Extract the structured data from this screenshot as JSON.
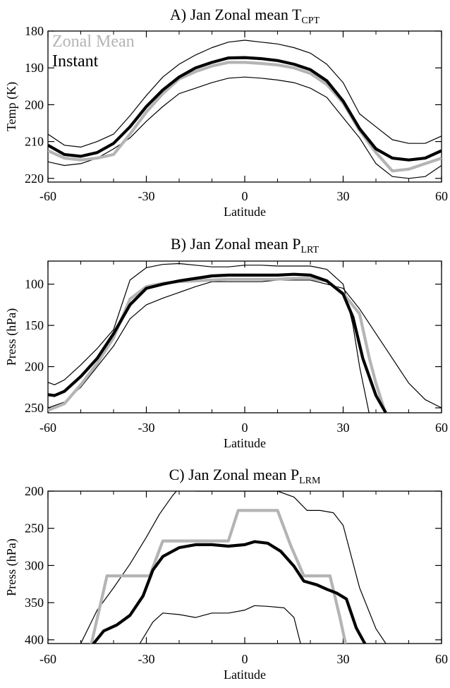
{
  "chart_data": [
    {
      "type": "line",
      "title": "A) Jan Zonal mean T",
      "title_sub": "CPT",
      "xlabel": "Latitude",
      "ylabel": "Temp (K)",
      "xlim": [
        -60,
        60
      ],
      "ylim": [
        180,
        221
      ],
      "y_inverted": true,
      "xticks": [
        "-60",
        "-30",
        "0",
        "30",
        "60"
      ],
      "yticks": [
        "180",
        "190",
        "200",
        "210",
        "220"
      ],
      "legend": [
        "Zonal Mean",
        "Instant"
      ],
      "colors": {
        "zonal_mean": "#b4b4b4",
        "instant": "#000000",
        "spread": "#000000"
      },
      "series": [
        {
          "name": "Zonal Mean",
          "x": [
            -60,
            -55,
            -50,
            -45,
            -40,
            -35,
            -30,
            -25,
            -20,
            -15,
            -10,
            -5,
            0,
            5,
            10,
            15,
            20,
            25,
            30,
            35,
            40,
            45,
            50,
            55,
            60
          ],
          "values": [
            212.5,
            214.5,
            215,
            214.5,
            213.5,
            208,
            202,
            197,
            193,
            191,
            189.5,
            188.5,
            188.5,
            188.8,
            189.2,
            190,
            191.5,
            194.5,
            199.5,
            207,
            213,
            218,
            217.5,
            216,
            214.5
          ]
        },
        {
          "name": "Instant",
          "x": [
            -60,
            -55,
            -50,
            -45,
            -40,
            -35,
            -30,
            -25,
            -20,
            -15,
            -10,
            -5,
            0,
            5,
            10,
            15,
            20,
            25,
            30,
            35,
            40,
            45,
            50,
            55,
            60
          ],
          "values": [
            211,
            213.5,
            214,
            213,
            210.5,
            206,
            200.5,
            196,
            192.5,
            190,
            188.5,
            187.3,
            187.2,
            187.5,
            188,
            189,
            190.5,
            193.5,
            199,
            206.5,
            212,
            214.5,
            215,
            214.5,
            212.5
          ]
        },
        {
          "x": [
            -60,
            -55,
            -50,
            -45,
            -40,
            -35,
            -30,
            -25,
            -20,
            -15,
            -10,
            -5,
            0,
            5,
            10,
            15,
            20,
            25,
            30,
            35,
            40,
            45,
            50,
            55,
            60
          ],
          "values": [
            208,
            211,
            211.5,
            210,
            208,
            203,
            197.5,
            192.5,
            189,
            186.5,
            184.5,
            183,
            182.5,
            183,
            183.5,
            184.5,
            186,
            189,
            194,
            202.5,
            206,
            209.5,
            210.5,
            210.5,
            208.5
          ]
        },
        {
          "x": [
            -60,
            -55,
            -50,
            -45,
            -40,
            -35,
            -30,
            -25,
            -20,
            -15,
            -10,
            -5,
            0,
            5,
            10,
            15,
            20,
            25,
            30,
            35,
            40,
            45,
            50,
            55,
            60
          ],
          "values": [
            215.5,
            216.5,
            216,
            214.5,
            212,
            209,
            204.5,
            200.5,
            197,
            195.5,
            194,
            192.8,
            192.5,
            192.8,
            193.3,
            194,
            195.5,
            198,
            203.5,
            209,
            216,
            219.5,
            220,
            219.5,
            216.5
          ]
        }
      ]
    },
    {
      "type": "line",
      "title": "B) Jan Zonal mean P",
      "title_sub": "LRT",
      "xlabel": "Latitude",
      "ylabel": "Press (hPa)",
      "xlim": [
        -60,
        60
      ],
      "ylim": [
        72,
        256
      ],
      "y_inverted": true,
      "xticks": [
        "-60",
        "-30",
        "0",
        "30",
        "60"
      ],
      "yticks": [
        "100",
        "150",
        "200",
        "250"
      ],
      "series": [
        {
          "name": "Zonal Mean",
          "x": [
            -60,
            -55,
            -50,
            -45,
            -40,
            -35,
            -30,
            -25,
            -20,
            -15,
            -10,
            -5,
            0,
            5,
            10,
            15,
            20,
            25,
            30,
            35,
            38,
            40,
            43
          ],
          "values": [
            253,
            245,
            222,
            196,
            165,
            118,
            103,
            99,
            97,
            96,
            95,
            94,
            94,
            94,
            94,
            93,
            93,
            96,
            111,
            136,
            190,
            220,
            258
          ]
        },
        {
          "name": "Instant",
          "x": [
            -60,
            -58,
            -55,
            -50,
            -45,
            -40,
            -35,
            -30,
            -25,
            -20,
            -15,
            -10,
            -5,
            0,
            5,
            10,
            15,
            20,
            25,
            30,
            33,
            36,
            40,
            43
          ],
          "values": [
            234,
            235,
            230,
            212,
            190,
            160,
            125,
            105,
            100,
            96,
            93,
            90,
            89,
            89,
            89,
            89,
            88,
            89,
            96,
            112,
            140,
            190,
            235,
            256
          ]
        },
        {
          "x": [
            -60,
            -58,
            -55,
            -50,
            -45,
            -40,
            -35,
            -30,
            -25,
            -20,
            -15,
            -10,
            -5,
            0,
            5,
            10,
            15,
            20,
            25,
            30,
            33,
            35,
            38
          ],
          "values": [
            219,
            222,
            216,
            198,
            178,
            155,
            95,
            80,
            76,
            75,
            77,
            79,
            79,
            77,
            77,
            78,
            78,
            78,
            82,
            100,
            150,
            200,
            258
          ]
        },
        {
          "x": [
            -60,
            -55,
            -50,
            -45,
            -40,
            -35,
            -30,
            -25,
            -20,
            -15,
            -10,
            -5,
            0,
            5,
            10,
            15,
            20,
            25,
            30,
            35,
            40,
            45,
            50,
            55,
            60
          ],
          "values": [
            250,
            243,
            225,
            200,
            175,
            142,
            125,
            117,
            110,
            103,
            97,
            97,
            97,
            97,
            95,
            95,
            95,
            100,
            105,
            130,
            160,
            190,
            220,
            240,
            250
          ]
        }
      ]
    },
    {
      "type": "line",
      "title": "C) Jan Zonal mean P",
      "title_sub": "LRM",
      "xlabel": "Latitude",
      "ylabel": "Press (hPa)",
      "xlim": [
        -60,
        60
      ],
      "ylim": [
        200,
        405
      ],
      "y_inverted": true,
      "xticks": [
        "-60",
        "-30",
        "0",
        "30",
        "60"
      ],
      "yticks": [
        "200",
        "250",
        "300",
        "350",
        "400"
      ],
      "series": [
        {
          "name": "Zonal Mean",
          "x": [
            -47,
            -42,
            -36,
            -29,
            -25,
            -20,
            -15,
            -10,
            -5,
            -2,
            2,
            5,
            10,
            14,
            18,
            22,
            26,
            29,
            31
          ],
          "values": [
            410,
            314,
            314,
            314,
            267,
            267,
            267,
            267,
            267,
            226,
            226,
            226,
            226,
            273,
            314,
            314,
            314,
            370,
            410
          ]
        },
        {
          "name": "Instant",
          "x": [
            -47,
            -43,
            -39,
            -35,
            -31,
            -28,
            -25,
            -20,
            -15,
            -10,
            -5,
            0,
            3,
            7,
            11,
            15,
            18,
            22,
            25,
            28,
            31,
            34,
            37
          ],
          "values": [
            410,
            388,
            380,
            367,
            341,
            306,
            288,
            276,
            272,
            272,
            274,
            272,
            268,
            270,
            281,
            301,
            321,
            326,
            332,
            337,
            345,
            384,
            408
          ]
        },
        {
          "x": [
            -50,
            -45,
            -40,
            -35,
            -30,
            -26,
            -22,
            -20,
            -15,
            -10,
            -5,
            0,
            5,
            10,
            15,
            19,
            23,
            27,
            30,
            35,
            40,
            43
          ],
          "values": [
            405,
            360,
            330,
            298,
            262,
            231,
            206,
            196,
            200,
            200,
            200,
            200,
            200,
            200,
            208,
            226,
            226,
            229,
            246,
            330,
            385,
            405
          ]
        },
        {
          "x": [
            -32,
            -28,
            -25,
            -20,
            -15,
            -10,
            -5,
            0,
            3,
            7,
            12,
            15,
            17
          ],
          "values": [
            405,
            376,
            364,
            366,
            370,
            364,
            364,
            360,
            354,
            355,
            357,
            370,
            405
          ]
        }
      ]
    }
  ]
}
